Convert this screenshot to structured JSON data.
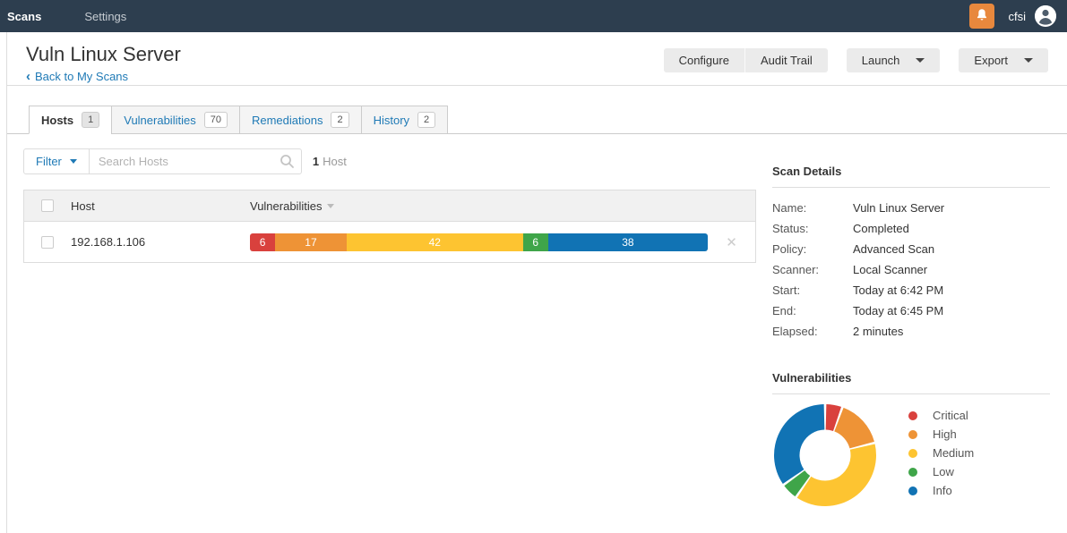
{
  "topnav": {
    "brand": "Scans",
    "settings": "Settings",
    "user": "cfsi"
  },
  "header": {
    "title": "Vuln Linux Server",
    "back_chevron": "‹",
    "back_label": "Back to My Scans",
    "configure_label": "Configure",
    "audit_trail_label": "Audit Trail",
    "launch_label": "Launch",
    "export_label": "Export"
  },
  "tabs": [
    {
      "label": "Hosts",
      "count": "1",
      "active": true
    },
    {
      "label": "Vulnerabilities",
      "count": "70",
      "active": false
    },
    {
      "label": "Remediations",
      "count": "2",
      "active": false
    },
    {
      "label": "History",
      "count": "2",
      "active": false
    }
  ],
  "filter_bar": {
    "filter_label": "Filter",
    "search_placeholder": "Search Hosts",
    "result_count": "1",
    "result_label": "Host"
  },
  "host_table": {
    "columns": {
      "host": "Host",
      "vulnerabilities": "Vulnerabilities"
    },
    "rows": [
      {
        "host": "192.168.1.106"
      }
    ],
    "close_glyph": "✕"
  },
  "scan_details": {
    "title": "Scan Details",
    "fields": [
      {
        "label": "Name:",
        "value": "Vuln Linux Server"
      },
      {
        "label": "Status:",
        "value": "Completed"
      },
      {
        "label": "Policy:",
        "value": "Advanced Scan"
      },
      {
        "label": "Scanner:",
        "value": "Local Scanner"
      },
      {
        "label": "Start:",
        "value": "Today at 6:42 PM"
      },
      {
        "label": "End:",
        "value": "Today at 6:45 PM"
      },
      {
        "label": "Elapsed:",
        "value": "2 minutes"
      }
    ]
  },
  "vulnerabilities_panel": {
    "title": "Vulnerabilities"
  },
  "chart_data": [
    {
      "type": "bar",
      "variant": "stacked-severity",
      "categories": [
        "Critical",
        "High",
        "Medium",
        "Low",
        "Info"
      ],
      "values": [
        6,
        17,
        42,
        6,
        38
      ],
      "total": 109,
      "colors": [
        "#d9413d",
        "#ee9336",
        "#fdc431",
        "#3fa549",
        "#1173b4"
      ]
    },
    {
      "type": "pie",
      "variant": "donut",
      "title": "Vulnerabilities",
      "categories": [
        "Critical",
        "High",
        "Medium",
        "Low",
        "Info"
      ],
      "values": [
        6,
        17,
        42,
        6,
        38
      ],
      "colors": [
        "#d9413d",
        "#ee9336",
        "#fdc431",
        "#3fa549",
        "#1173b4"
      ],
      "legend_position": "right",
      "start_angle_deg": -90,
      "direction": "clockwise"
    }
  ],
  "colors": {
    "topbar": "#2d3e4f",
    "link": "#1f7ab6",
    "bell": "#e8883d"
  }
}
